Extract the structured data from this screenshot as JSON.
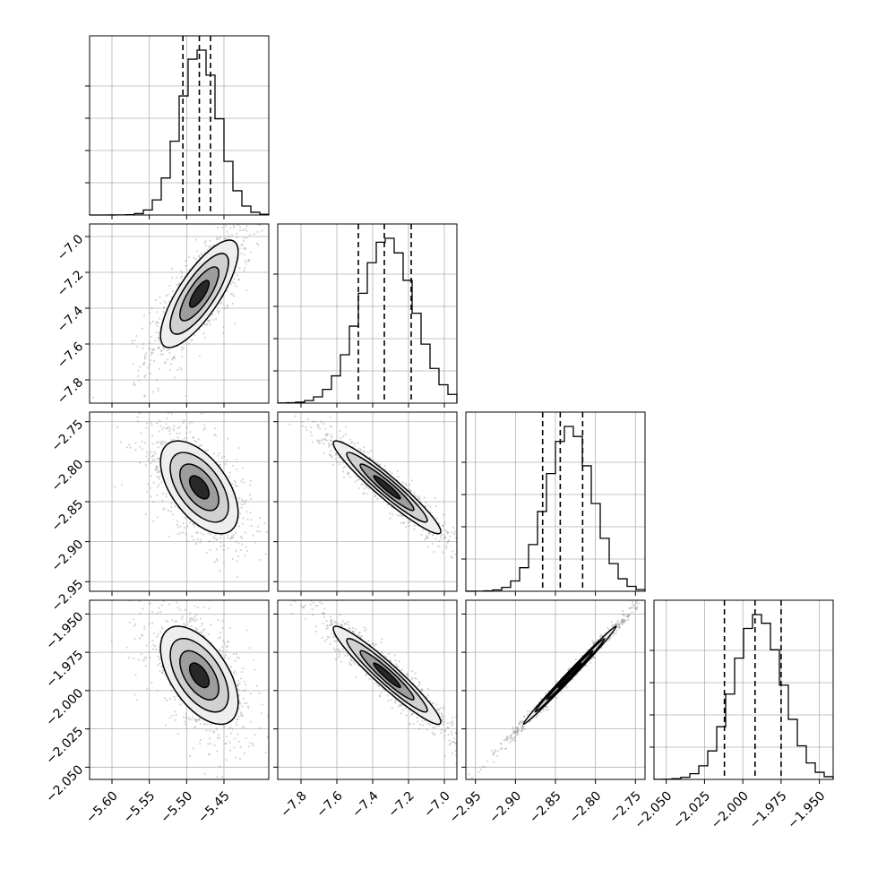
{
  "chart_data": {
    "type": "corner",
    "parameters": [
      {
        "range": [
          -5.63,
          -5.39
        ],
        "ticks": [
          -5.6,
          -5.55,
          -5.5,
          -5.45
        ],
        "tick_labels": [
          "−5.60",
          "−5.55",
          "−5.50",
          "−5.45"
        ],
        "center": -5.483,
        "sigma": 0.026,
        "quantiles": [
          -5.505,
          -5.483,
          -5.468
        ]
      },
      {
        "range": [
          -7.93,
          -6.93
        ],
        "ticks": [
          -7.8,
          -7.6,
          -7.4,
          -7.2,
          -7.0
        ],
        "tick_labels": [
          "−7.8",
          "−7.6",
          "−7.4",
          "−7.2",
          "−7.0"
        ],
        "center": -7.32,
        "sigma": 0.15,
        "quantiles": [
          -7.48,
          -7.335,
          -7.185
        ]
      },
      {
        "range": [
          -2.962,
          -2.738
        ],
        "ticks": [
          -2.95,
          -2.9,
          -2.85,
          -2.8,
          -2.75
        ],
        "tick_labels": [
          "−2.95",
          "−2.90",
          "−2.85",
          "−2.80",
          "−2.75"
        ],
        "center": -2.832,
        "sigma": 0.029,
        "quantiles": [
          -2.866,
          -2.844,
          -2.816
        ]
      },
      {
        "range": [
          -2.058,
          -1.941
        ],
        "ticks": [
          -2.05,
          -2.025,
          -2.0,
          -1.975,
          -1.95
        ],
        "tick_labels": [
          "−2.050",
          "−2.025",
          "−2.000",
          "−1.975",
          "−1.950"
        ],
        "center": -1.99,
        "sigma": 0.016,
        "quantiles": [
          -2.012,
          -1.992,
          -1.975
        ]
      }
    ],
    "correlations": [
      [
        1,
        0.78,
        -0.55,
        -0.55
      ],
      [
        0.78,
        1,
        -0.95,
        -0.95
      ],
      [
        -0.55,
        -0.95,
        1,
        0.995
      ],
      [
        -0.55,
        -0.95,
        0.995,
        1
      ]
    ],
    "grid": true,
    "contour_levels": [
      0.5,
      1.0,
      1.5,
      2.0
    ],
    "hist_bins": 20
  }
}
